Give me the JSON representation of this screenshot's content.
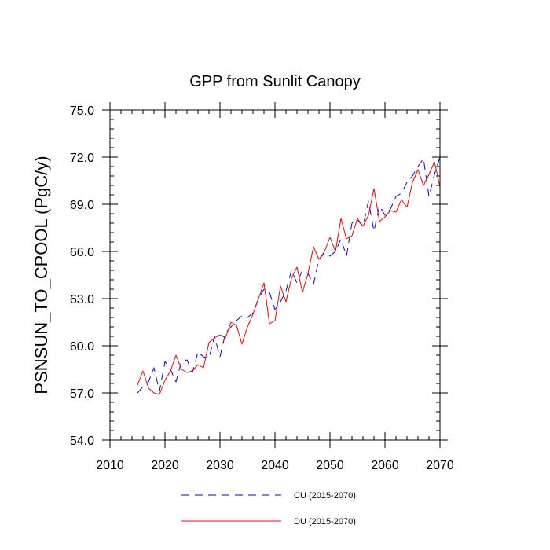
{
  "chart_data": {
    "type": "line",
    "title": "GPP from Sunlit Canopy",
    "xlabel": "",
    "ylabel": "PSNSUN_TO_CPOOL  (PgC/y)",
    "xlim": [
      2010,
      2070
    ],
    "ylim": [
      54.0,
      75.0
    ],
    "xticks": [
      2010,
      2020,
      2030,
      2040,
      2050,
      2060,
      2070
    ],
    "xtick_labels": [
      "2010",
      "2020",
      "2030",
      "2040",
      "2050",
      "2060",
      "2070"
    ],
    "yticks": [
      54.0,
      57.0,
      60.0,
      63.0,
      66.0,
      69.0,
      72.0,
      75.0
    ],
    "ytick_labels": [
      "54.0",
      "57.0",
      "60.0",
      "63.0",
      "66.0",
      "69.0",
      "72.0",
      "75.0"
    ],
    "legend_position": "bottom",
    "series": [
      {
        "name": "CU (2015-2070)",
        "color": "#0000ff",
        "style": "dashed",
        "x": [
          2015,
          2016,
          2017,
          2018,
          2019,
          2020,
          2021,
          2022,
          2023,
          2024,
          2025,
          2026,
          2027,
          2028,
          2029,
          2030,
          2031,
          2032,
          2033,
          2034,
          2035,
          2036,
          2037,
          2038,
          2039,
          2040,
          2041,
          2042,
          2043,
          2044,
          2045,
          2046,
          2047,
          2048,
          2049,
          2050,
          2051,
          2052,
          2053,
          2054,
          2055,
          2056,
          2057,
          2058,
          2059,
          2060,
          2061,
          2062,
          2063,
          2064,
          2065,
          2066,
          2067,
          2068,
          2069,
          2070
        ],
        "values": [
          57.0,
          57.4,
          57.7,
          58.6,
          57.1,
          59.0,
          58.5,
          57.7,
          59.0,
          59.1,
          58.3,
          59.6,
          59.3,
          59.2,
          60.6,
          59.3,
          60.8,
          61.2,
          61.6,
          61.9,
          61.8,
          62.1,
          63.0,
          63.6,
          63.4,
          62.3,
          62.8,
          63.5,
          64.8,
          64.0,
          64.8,
          64.6,
          63.9,
          65.5,
          65.9,
          65.7,
          66.0,
          66.8,
          65.7,
          67.8,
          68.0,
          67.6,
          69.2,
          67.3,
          68.9,
          68.3,
          68.7,
          69.5,
          69.7,
          70.4,
          70.8,
          71.4,
          71.9,
          69.5,
          70.9,
          72.0
        ]
      },
      {
        "name": "DU (2015-2070)",
        "color": "#ff0000",
        "style": "solid",
        "x": [
          2015,
          2016,
          2017,
          2018,
          2019,
          2020,
          2021,
          2022,
          2023,
          2024,
          2025,
          2026,
          2027,
          2028,
          2029,
          2030,
          2031,
          2032,
          2033,
          2034,
          2035,
          2036,
          2037,
          2038,
          2039,
          2040,
          2041,
          2042,
          2043,
          2044,
          2045,
          2046,
          2047,
          2048,
          2049,
          2050,
          2051,
          2052,
          2053,
          2054,
          2055,
          2056,
          2057,
          2058,
          2059,
          2060,
          2061,
          2062,
          2063,
          2064,
          2065,
          2066,
          2067,
          2068,
          2069,
          2070
        ],
        "values": [
          57.5,
          58.4,
          57.3,
          57.0,
          56.9,
          57.8,
          58.4,
          59.4,
          58.5,
          58.3,
          58.4,
          58.8,
          58.6,
          60.2,
          60.5,
          60.7,
          60.5,
          61.5,
          61.3,
          60.1,
          61.2,
          62.0,
          63.0,
          64.0,
          61.4,
          61.6,
          63.8,
          62.8,
          64.3,
          65.0,
          63.4,
          64.6,
          66.3,
          65.5,
          66.0,
          66.9,
          66.0,
          68.1,
          66.8,
          67.0,
          68.1,
          67.6,
          68.3,
          70.0,
          67.9,
          68.2,
          68.6,
          68.5,
          69.3,
          68.8,
          70.4,
          71.2,
          70.2,
          70.9,
          71.7,
          70.1
        ]
      }
    ]
  }
}
